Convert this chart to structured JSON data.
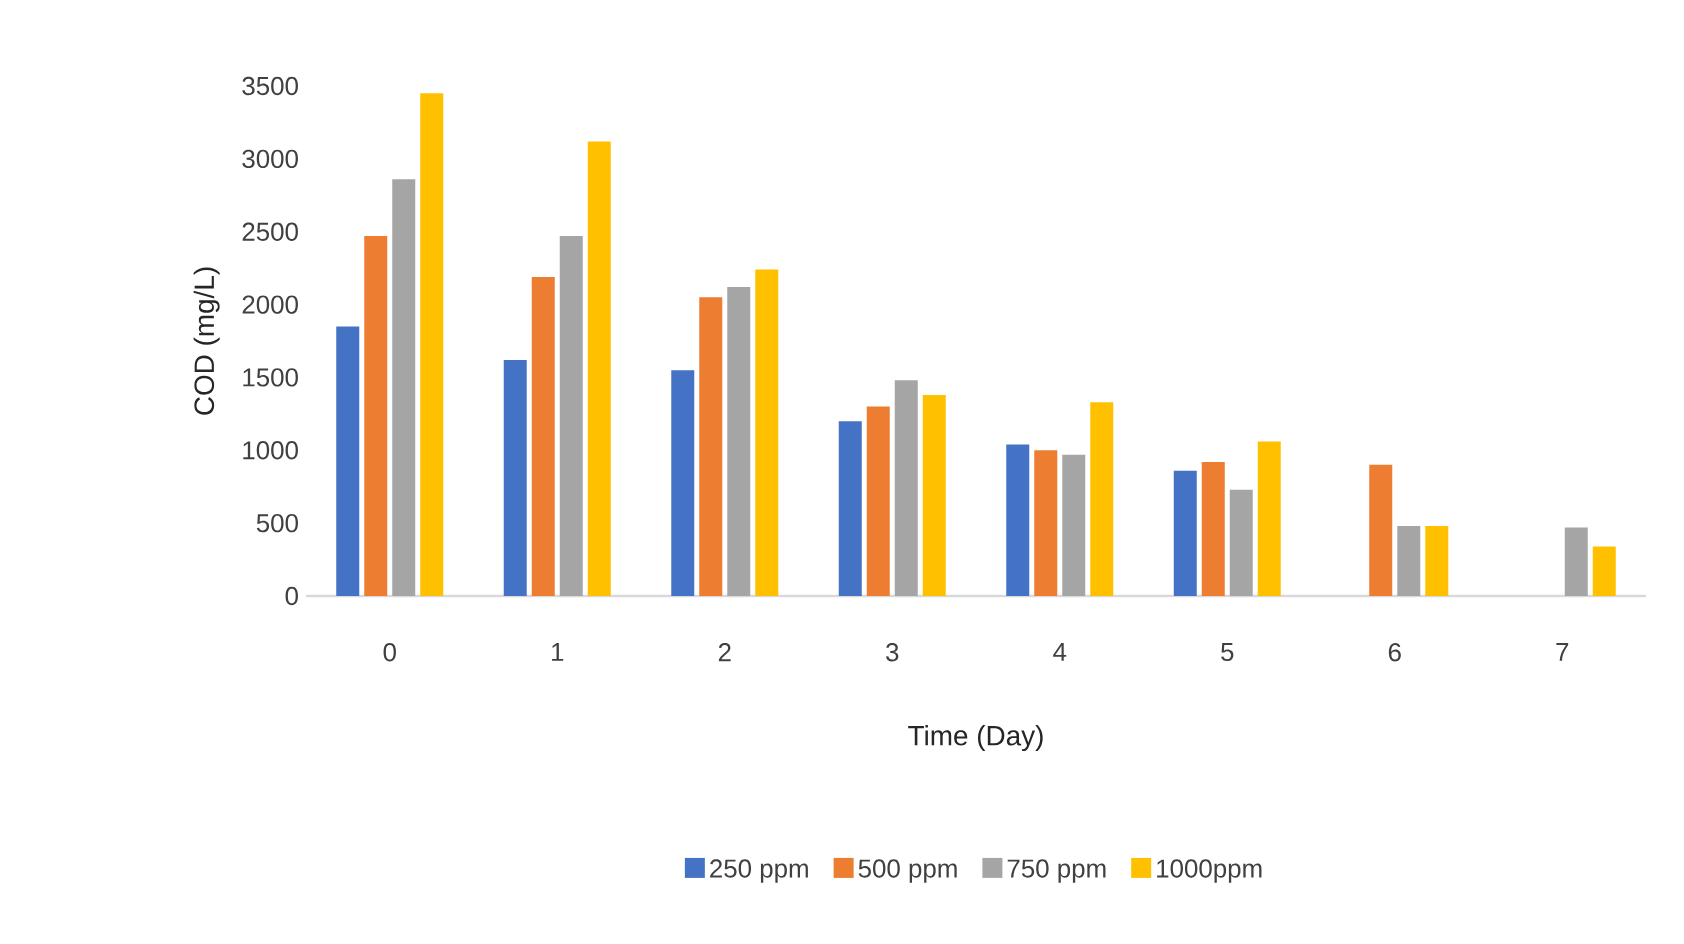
{
  "chart_data": {
    "type": "bar",
    "xlabel": "Time (Day)",
    "ylabel": "COD (mg/L)",
    "categories": [
      "0",
      "1",
      "2",
      "3",
      "4",
      "5",
      "6",
      "7"
    ],
    "ylim": [
      0,
      3500
    ],
    "yticks": [
      0,
      500,
      1000,
      1500,
      2000,
      2500,
      3000,
      3500
    ],
    "grid": false,
    "legend": "bottom",
    "series": [
      {
        "name": "250 ppm",
        "color": "#4472c4",
        "values": [
          1850,
          1620,
          1550,
          1200,
          1040,
          860,
          null,
          null
        ]
      },
      {
        "name": "500 ppm",
        "color": "#ed7d31",
        "values": [
          2470,
          2190,
          2050,
          1300,
          1000,
          920,
          900,
          null
        ]
      },
      {
        "name": "750 ppm",
        "color": "#a5a5a5",
        "values": [
          2860,
          2470,
          2120,
          1480,
          970,
          730,
          480,
          470
        ]
      },
      {
        "name": "1000ppm",
        "color": "#ffc000",
        "values": [
          3450,
          3120,
          2240,
          1380,
          1330,
          1060,
          480,
          340
        ]
      }
    ]
  }
}
